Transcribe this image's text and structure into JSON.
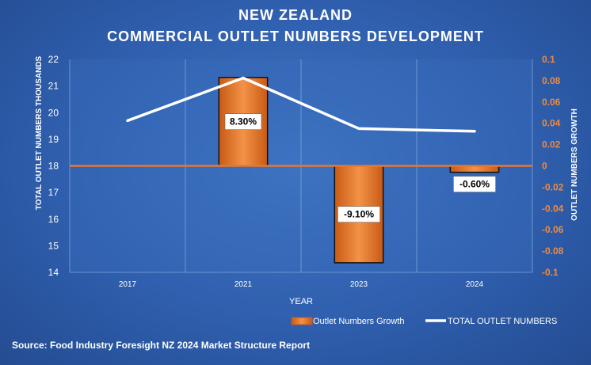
{
  "chart_data": {
    "type": "bar+line",
    "title_lines": [
      "NEW ZEALAND",
      "COMMERCIAL OUTLET NUMBERS DEVELOPMENT"
    ],
    "xlabel": "YEAR",
    "ylabel_left": "TOTAL OUTLET NUMBERS THOUSANDS",
    "ylabel_right": "OUTLET NUMBERS GROWTH",
    "categories": [
      "2017",
      "2021",
      "2023",
      "2024"
    ],
    "y_left": {
      "min": 14,
      "max": 22,
      "ticks": [
        "14",
        "15",
        "16",
        "17",
        "18",
        "19",
        "20",
        "21",
        "22"
      ]
    },
    "y_right": {
      "min": -0.1,
      "max": 0.1,
      "ticks": [
        "-0.1",
        "-0.08",
        "-0.06",
        "-0.04",
        "-0.02",
        "0",
        "0.02",
        "0.04",
        "0.06",
        "0.08",
        "0.1"
      ]
    },
    "series": [
      {
        "name": "Outlet Numbers Growth",
        "kind": "bar",
        "axis": "right",
        "color": "#e8772e",
        "values": [
          null,
          0.083,
          -0.091,
          -0.006
        ],
        "data_labels": [
          "",
          "8.30%",
          "-9.10%",
          "-0.60%"
        ]
      },
      {
        "name": "TOTAL OUTLET NUMBERS",
        "kind": "line",
        "axis": "left",
        "color": "#ffffff",
        "values": [
          19.7,
          21.3,
          19.4,
          19.3
        ]
      }
    ],
    "grid": "vertical",
    "legend_position": "bottom-right"
  },
  "source_text": "Source: Food Industry Foresight NZ 2024 Market Structure Report"
}
